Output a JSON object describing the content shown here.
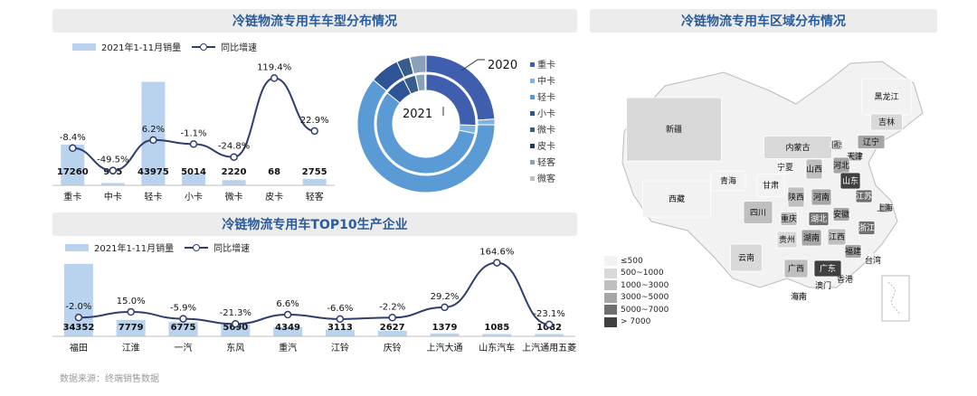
{
  "panels": {
    "type_title": "冷链物流专用车车型分布情况",
    "region_title": "冷链物流专用车区域分布情况",
    "top10_title": "冷链物流专用车TOP10生产企业"
  },
  "source_note": "数据来源：终端销售数据",
  "colors": {
    "bar": "#b9d3ee",
    "line": "#2f3e6f",
    "banner_text": "#2a5c9a"
  },
  "chart_data": [
    {
      "type": "bar",
      "id": "vehicle-type",
      "categories": [
        "重卡",
        "中卡",
        "轻卡",
        "小卡",
        "微卡",
        "皮卡",
        "轻客"
      ],
      "series": [
        {
          "name": "2021年1-11月销量",
          "values": [
            17260,
            985,
            43975,
            5014,
            2220,
            68,
            2755
          ]
        },
        {
          "name": "同比增速",
          "kind": "line",
          "values": [
            -8.4,
            -49.5,
            6.2,
            -1.1,
            -24.8,
            119.4,
            22.9
          ],
          "labels": [
            "-8.4%",
            "-49.5%",
            "6.2%",
            "-1.1%",
            "-24.8%",
            "119.4%",
            "22.9%"
          ]
        }
      ],
      "ylim_bar": [
        0,
        48000
      ],
      "ylim_line": [
        -60,
        130
      ]
    },
    {
      "type": "pie",
      "id": "type-donut",
      "rings": [
        {
          "label": "2021",
          "values": [
            17260,
            985,
            43975,
            5014,
            2220,
            68,
            2755,
            0
          ]
        },
        {
          "label": "2020",
          "values": [
            19000,
            1950,
            43000,
            5100,
            2950,
            30,
            2240,
            300
          ]
        }
      ],
      "legend": [
        "重卡",
        "中卡",
        "轻卡",
        "小卡",
        "微卡",
        "皮卡",
        "轻客",
        "微客"
      ],
      "colors": [
        "#3f5fae",
        "#7fb1e3",
        "#5b9bd5",
        "#2f5496",
        "#385d8a",
        "#1f3864",
        "#8aa1ba",
        "#bfbfbf"
      ]
    },
    {
      "type": "bar",
      "id": "top10",
      "categories": [
        "福田",
        "江淮",
        "一汽",
        "东风",
        "重汽",
        "江铃",
        "庆铃",
        "上汽大通",
        "山东汽车",
        "上汽通用五菱"
      ],
      "series": [
        {
          "name": "2021年1-11月销量",
          "values": [
            34352,
            7779,
            6775,
            5690,
            4349,
            3113,
            2627,
            1379,
            1085,
            1082
          ]
        },
        {
          "name": "同比增速",
          "kind": "line",
          "values": [
            -2.0,
            15.0,
            -5.9,
            -21.3,
            6.6,
            -6.6,
            -2.2,
            29.2,
            164.6,
            -23.1
          ],
          "labels": [
            "-2.0%",
            "15.0%",
            "-5.9%",
            "-21.3%",
            "6.6%",
            "-6.6%",
            "-2.2%",
            "29.2%",
            "164.6%",
            "-23.1%"
          ]
        }
      ],
      "ylim_bar": [
        0,
        36000
      ],
      "ylim_line": [
        -40,
        180
      ]
    },
    {
      "type": "heatmap",
      "id": "region-map",
      "legend": [
        "≤500",
        "500~1000",
        "1000~3000",
        "3000~5000",
        "5000~7000",
        "> 7000"
      ],
      "legend_colors": [
        "#f2f2f2",
        "#d9d9d9",
        "#bfbfbf",
        "#a6a6a6",
        "#6f6f6f",
        "#404040"
      ],
      "regions": [
        {
          "name": "黑龙江",
          "level": 0
        },
        {
          "name": "吉林",
          "level": 1
        },
        {
          "name": "辽宁",
          "level": 3
        },
        {
          "name": "新疆",
          "level": 1
        },
        {
          "name": "内蒙古",
          "level": 1
        },
        {
          "name": "北京",
          "level": 4
        },
        {
          "name": "天津",
          "level": 3
        },
        {
          "name": "河北",
          "level": 3
        },
        {
          "name": "山西",
          "level": 2
        },
        {
          "name": "宁夏",
          "level": 0
        },
        {
          "name": "甘肃",
          "level": 0
        },
        {
          "name": "青海",
          "level": 0
        },
        {
          "name": "陕西",
          "level": 2
        },
        {
          "name": "河南",
          "level": 3
        },
        {
          "name": "山东",
          "level": 5
        },
        {
          "name": "江苏",
          "level": 4
        },
        {
          "name": "上海",
          "level": 3
        },
        {
          "name": "西藏",
          "level": 0
        },
        {
          "name": "四川",
          "level": 2
        },
        {
          "name": "重庆",
          "level": 2
        },
        {
          "name": "湖北",
          "level": 4
        },
        {
          "name": "安徽",
          "level": 3
        },
        {
          "name": "浙江",
          "level": 4
        },
        {
          "name": "湖南",
          "level": 3
        },
        {
          "name": "江西",
          "level": 2
        },
        {
          "name": "福建",
          "level": 3
        },
        {
          "name": "贵州",
          "level": 1
        },
        {
          "name": "云南",
          "level": 1
        },
        {
          "name": "广西",
          "level": 2
        },
        {
          "name": "广东",
          "level": 5
        },
        {
          "name": "台湾",
          "level": 0
        },
        {
          "name": "香港",
          "level": 0
        },
        {
          "name": "澳门",
          "level": 0
        },
        {
          "name": "海南",
          "level": 1
        }
      ]
    }
  ]
}
